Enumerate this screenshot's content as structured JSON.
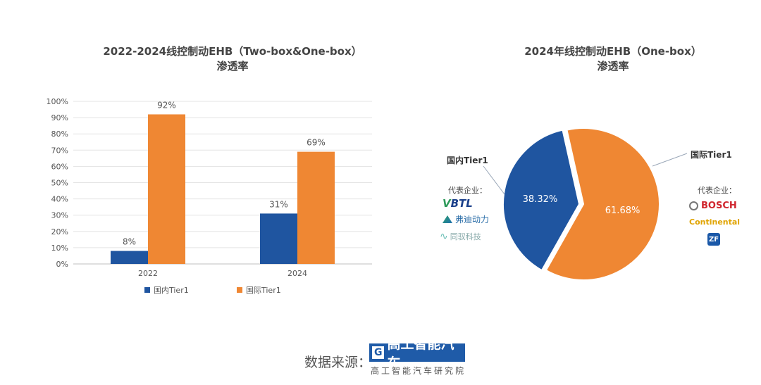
{
  "chart_data": [
    {
      "type": "bar",
      "title": "2022-2024线控制动EHB（Two-box&One-box）",
      "subtitle": "渗透率",
      "categories": [
        "2022",
        "2024"
      ],
      "series": [
        {
          "name": "国内Tier1",
          "values": [
            8,
            31
          ],
          "color": "#1f55a0"
        },
        {
          "name": "国际Tier1",
          "values": [
            92,
            69
          ],
          "color": "#ef8733"
        }
      ],
      "data_labels": [
        [
          "8%",
          "31%"
        ],
        [
          "92%",
          "69%"
        ]
      ],
      "y_ticks": [
        "0%",
        "10%",
        "20%",
        "30%",
        "40%",
        "50%",
        "60%",
        "70%",
        "80%",
        "90%",
        "100%"
      ],
      "ylim": [
        0,
        100
      ],
      "grid": true,
      "legend": "bottom"
    },
    {
      "type": "pie",
      "title": "2024年线控制动EHB（One-box）",
      "subtitle": "渗透率",
      "slices": [
        {
          "name": "国内Tier1",
          "value": 38.32,
          "label": "38.32%",
          "color": "#1f55a0"
        },
        {
          "name": "国际Tier1",
          "value": 61.68,
          "label": "61.68%",
          "color": "#ef8733"
        }
      ]
    }
  ],
  "annotations": {
    "domestic_label": "国内Tier1",
    "intl_label": "国际Tier1",
    "rep_label": "代表企业：",
    "domestic_logos": [
      "BTL",
      "弗迪动力",
      "同驭科技"
    ],
    "intl_logos": [
      "BOSCH",
      "Continental",
      "ZF"
    ]
  },
  "footer": {
    "source_label": "数据来源：",
    "brand_g": "G",
    "brand_name": "高工智能汽车",
    "brand_sub": "高工智能汽车研究院"
  }
}
